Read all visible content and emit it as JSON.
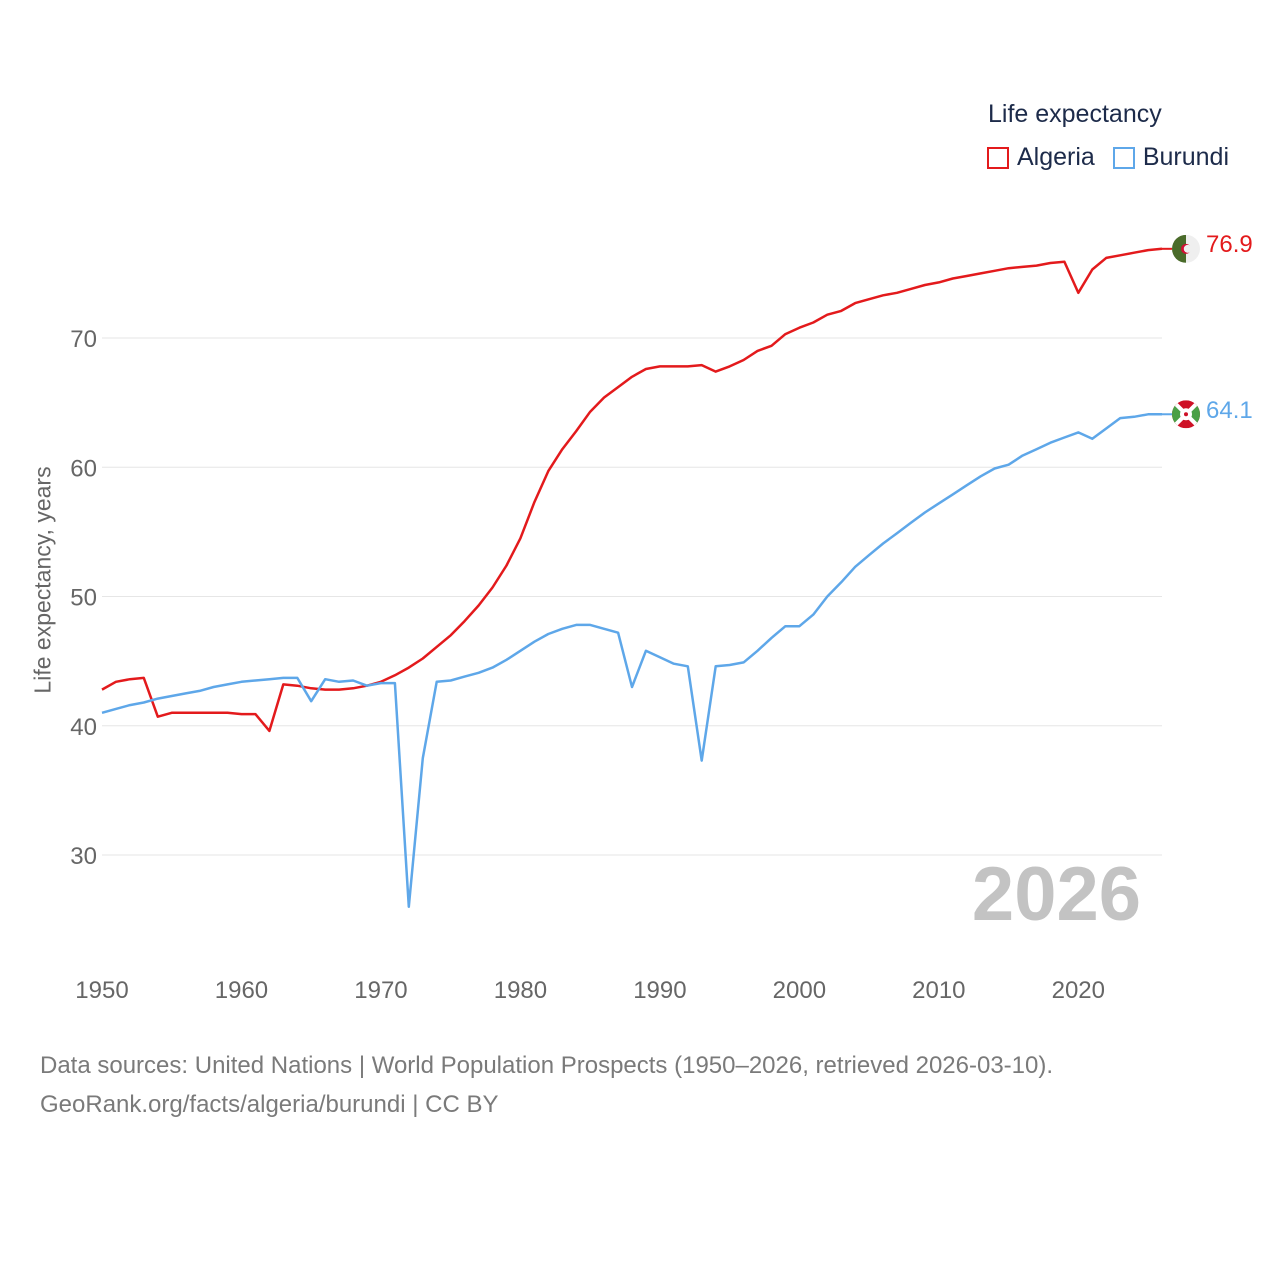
{
  "legend": {
    "title": "Life expectancy",
    "items": [
      {
        "label": "Algeria",
        "color": "#e31a1c"
      },
      {
        "label": "Burundi",
        "color": "#5ea7e9"
      }
    ]
  },
  "year_badge": "2026",
  "source": {
    "line1": "Data sources: United Nations | World Population Prospects (1950–2026, retrieved 2026-03-10).",
    "line2": "GeoRank.org/facts/algeria/burundi | CC BY"
  },
  "end_labels": {
    "algeria": "76.9",
    "burundi": "64.1"
  },
  "chart_data": {
    "type": "line",
    "title": "Life expectancy",
    "xlabel": "",
    "ylabel": "Life expectancy, years",
    "xlim": [
      1950,
      2026
    ],
    "ylim": [
      22.5,
      78
    ],
    "xticks": [
      1950,
      1960,
      1970,
      1980,
      1990,
      2000,
      2010,
      2020
    ],
    "yticks": [
      30,
      40,
      50,
      60,
      70
    ],
    "grid": "horizontal",
    "x": [
      1950,
      1951,
      1952,
      1953,
      1954,
      1955,
      1956,
      1957,
      1958,
      1959,
      1960,
      1961,
      1962,
      1963,
      1964,
      1965,
      1966,
      1967,
      1968,
      1969,
      1970,
      1971,
      1972,
      1973,
      1974,
      1975,
      1976,
      1977,
      1978,
      1979,
      1980,
      1981,
      1982,
      1983,
      1984,
      1985,
      1986,
      1987,
      1988,
      1989,
      1990,
      1991,
      1992,
      1993,
      1994,
      1995,
      1996,
      1997,
      1998,
      1999,
      2000,
      2001,
      2002,
      2003,
      2004,
      2005,
      2006,
      2007,
      2008,
      2009,
      2010,
      2011,
      2012,
      2013,
      2014,
      2015,
      2016,
      2017,
      2018,
      2019,
      2020,
      2021,
      2022,
      2023,
      2024,
      2025,
      2026
    ],
    "series": [
      {
        "name": "Algeria",
        "color": "#e31a1c",
        "values": [
          42.8,
          43.4,
          43.6,
          43.7,
          40.7,
          41.0,
          41.0,
          41.0,
          41.0,
          41.0,
          40.9,
          40.9,
          39.6,
          43.2,
          43.1,
          42.9,
          42.8,
          42.8,
          42.9,
          43.1,
          43.4,
          43.9,
          44.5,
          45.2,
          46.1,
          47.0,
          48.1,
          49.3,
          50.7,
          52.4,
          54.5,
          57.3,
          59.7,
          61.4,
          62.8,
          64.3,
          65.4,
          66.2,
          67.0,
          67.6,
          67.8,
          67.8,
          67.8,
          67.9,
          67.4,
          67.8,
          68.3,
          69.0,
          69.4,
          70.3,
          70.8,
          71.2,
          71.8,
          72.1,
          72.7,
          73.0,
          73.3,
          73.5,
          73.8,
          74.1,
          74.3,
          74.6,
          74.8,
          75.0,
          75.2,
          75.4,
          75.5,
          75.6,
          75.8,
          75.9,
          73.5,
          75.3,
          76.2,
          76.4,
          76.6,
          76.8,
          76.9
        ]
      },
      {
        "name": "Burundi",
        "color": "#5ea7e9",
        "values": [
          41.0,
          41.3,
          41.6,
          41.8,
          42.1,
          42.3,
          42.5,
          42.7,
          43.0,
          43.2,
          43.4,
          43.5,
          43.6,
          43.7,
          43.7,
          41.9,
          43.6,
          43.4,
          43.5,
          43.1,
          43.3,
          43.3,
          26.0,
          37.5,
          43.4,
          43.5,
          43.8,
          44.1,
          44.5,
          45.1,
          45.8,
          46.5,
          47.1,
          47.5,
          47.8,
          47.8,
          47.5,
          47.2,
          43.0,
          45.8,
          45.3,
          44.8,
          44.6,
          37.3,
          44.6,
          44.7,
          44.9,
          45.8,
          46.8,
          47.7,
          47.7,
          48.6,
          50.0,
          51.1,
          52.3,
          53.2,
          54.1,
          54.9,
          55.7,
          56.5,
          57.2,
          57.9,
          58.6,
          59.3,
          59.9,
          60.2,
          60.9,
          61.4,
          61.9,
          62.3,
          62.7,
          62.2,
          63.0,
          63.8,
          63.9,
          64.1,
          64.1
        ]
      }
    ]
  }
}
